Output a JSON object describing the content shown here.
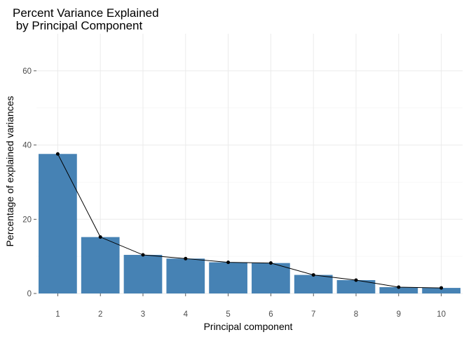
{
  "chart_data": {
    "type": "bar",
    "title_lines": [
      "Percent Variance Explained",
      " by Principal Component"
    ],
    "xlabel": "Principal component",
    "ylabel": "Percentage of explained variances",
    "categories": [
      "1",
      "2",
      "3",
      "4",
      "5",
      "6",
      "7",
      "8",
      "9",
      "10"
    ],
    "values": [
      37.6,
      15.2,
      10.4,
      9.4,
      8.4,
      8.2,
      5.0,
      3.6,
      1.7,
      1.5
    ],
    "overlay": "line-with-points",
    "ylim": [
      0,
      70
    ],
    "yticks": [
      0,
      20,
      40,
      60
    ],
    "grid": true,
    "bar_color": "#4682b4",
    "line_color": "#000000"
  }
}
